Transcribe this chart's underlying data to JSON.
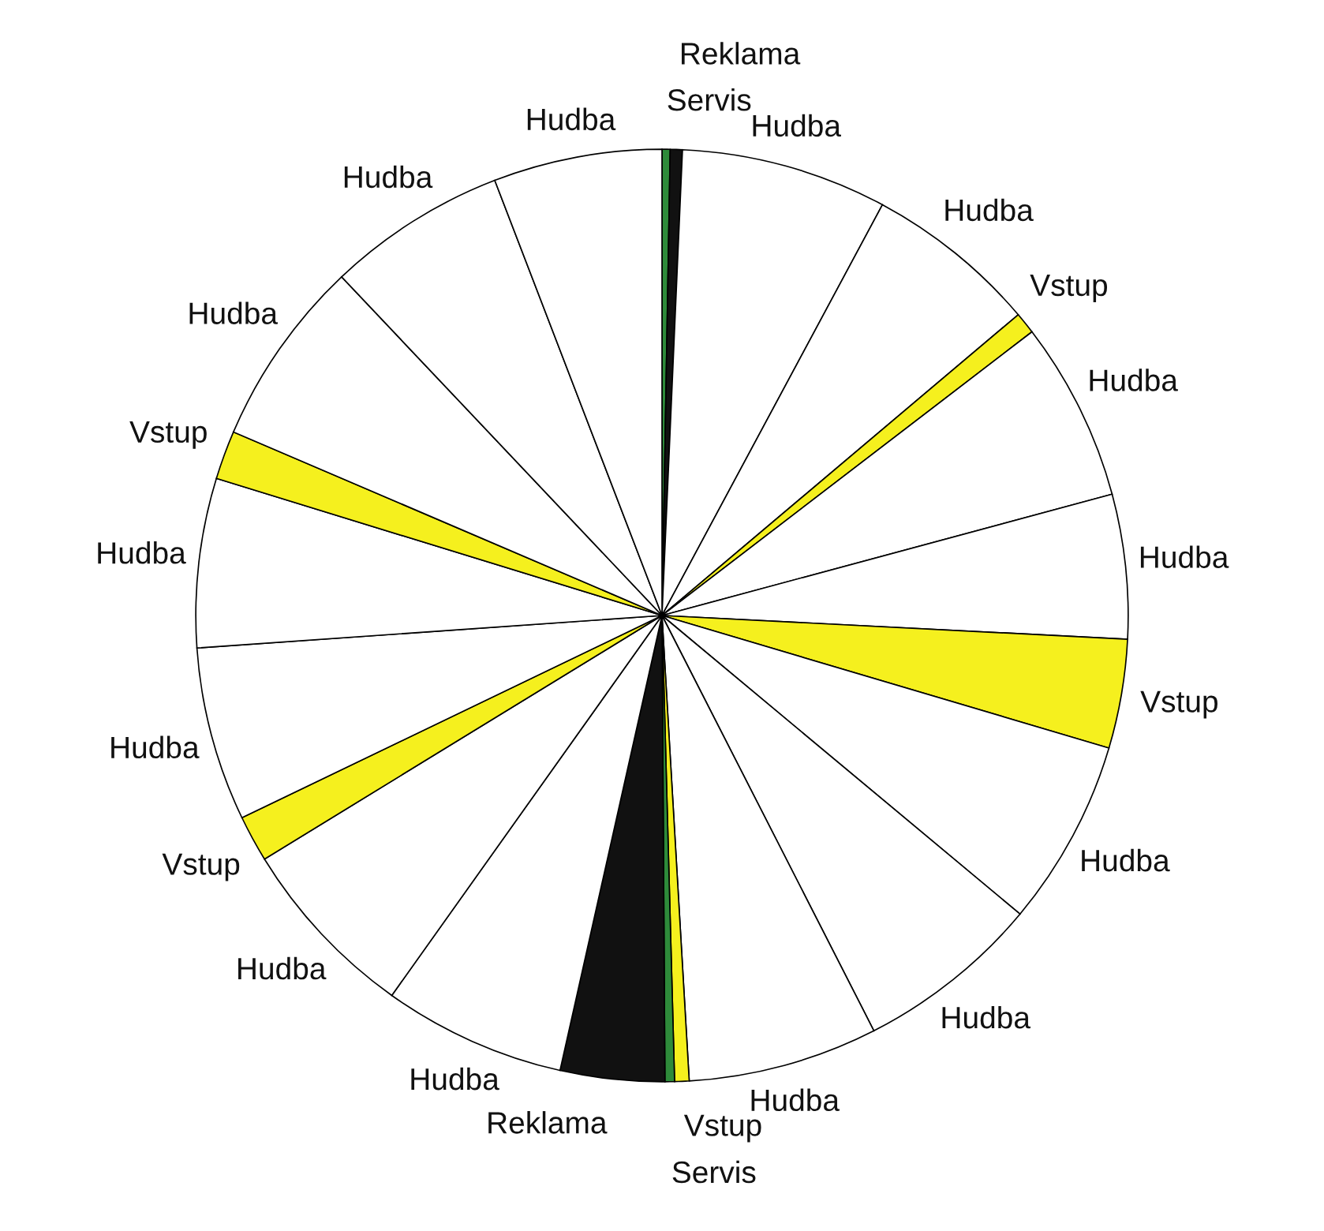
{
  "chart_data": {
    "type": "pie",
    "categories": [
      "Servis",
      "Reklama",
      "Hudba",
      "Hudba",
      "Vstup",
      "Hudba",
      "Hudba",
      "Vstup",
      "Hudba",
      "Hudba",
      "Hudba",
      "Vstup",
      "Servis",
      "Reklama",
      "Hudba",
      "Hudba",
      "Vstup",
      "Hudba",
      "Hudba",
      "Vstup",
      "Hudba",
      "Hudba",
      "Hudba"
    ],
    "values": [
      0.28,
      0.42,
      7.14,
      6.0,
      0.75,
      6.22,
      5.0,
      3.78,
      6.47,
      6.43,
      6.58,
      0.5,
      0.33,
      3.61,
      6.33,
      6.41,
      1.61,
      6.03,
      5.86,
      1.69,
      6.5,
      6.22,
      5.84
    ],
    "colors": [
      "#2e8b3a",
      "#111111",
      "#ffffff",
      "#ffffff",
      "#f5f01e",
      "#ffffff",
      "#ffffff",
      "#f5f01e",
      "#ffffff",
      "#ffffff",
      "#ffffff",
      "#f5f01e",
      "#2e8b3a",
      "#111111",
      "#ffffff",
      "#ffffff",
      "#f5f01e",
      "#ffffff",
      "#ffffff",
      "#f5f01e",
      "#ffffff",
      "#ffffff",
      "#ffffff"
    ]
  }
}
